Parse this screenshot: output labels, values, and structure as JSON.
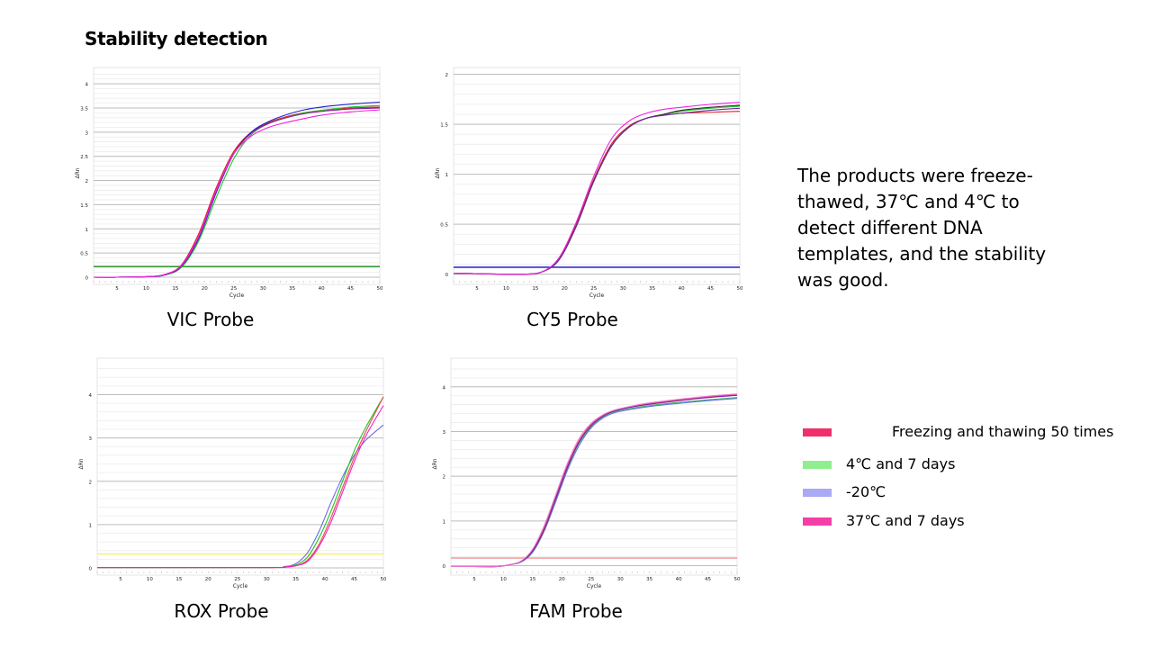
{
  "heading": "Stability detection",
  "description": "The products were freeze-thawed, 37℃ and 4℃ to detect different DNA templates, and the stability was good.",
  "legend": [
    {
      "label": "Freezing and thawing 50 times",
      "color": "#f0306a"
    },
    {
      "label": "4℃ and 7 days",
      "color": "#90ee90"
    },
    {
      "label": "-20℃",
      "color": "#a9a9f5"
    },
    {
      "label": "37℃ and 7 days",
      "color": "#f43fa8"
    }
  ],
  "chart_data": [
    {
      "type": "line",
      "title": "VIC Probe",
      "xlabel": "Cycle",
      "ylabel": "ΔRn",
      "xlim": [
        1,
        50
      ],
      "ylim": [
        0,
        4.3
      ],
      "xticks": [
        5,
        10,
        15,
        20,
        25,
        30,
        35,
        40,
        45,
        50
      ],
      "yticks": [
        0,
        0.5,
        1,
        1.5,
        2,
        2.5,
        3,
        3.5,
        4
      ],
      "ytick_labels": [
        "0",
        "0.5",
        "1",
        "1.5",
        "2",
        "2.5",
        "3",
        "3.5",
        "4"
      ],
      "grid": true,
      "threshold": 0.22,
      "threshold_color": "#3c9a3c",
      "x": [
        1,
        5,
        10,
        13,
        16,
        19,
        22,
        25,
        28,
        31,
        34,
        37,
        40,
        45,
        50
      ],
      "series": [
        {
          "color": "#e02020",
          "values": [
            0,
            0,
            0.01,
            0.05,
            0.25,
            0.9,
            1.85,
            2.6,
            3.0,
            3.2,
            3.32,
            3.4,
            3.45,
            3.5,
            3.52
          ]
        },
        {
          "color": "#22c422",
          "values": [
            0,
            0,
            0.01,
            0.04,
            0.2,
            0.75,
            1.65,
            2.45,
            2.95,
            3.18,
            3.3,
            3.4,
            3.45,
            3.52,
            3.55
          ]
        },
        {
          "color": "#2222cc",
          "values": [
            0,
            0,
            0.01,
            0.04,
            0.22,
            0.8,
            1.75,
            2.55,
            3.0,
            3.22,
            3.36,
            3.46,
            3.52,
            3.58,
            3.62
          ]
        },
        {
          "color": "#8a1aa0",
          "values": [
            0,
            0,
            0.01,
            0.045,
            0.23,
            0.83,
            1.78,
            2.56,
            2.98,
            3.18,
            3.3,
            3.38,
            3.43,
            3.48,
            3.5
          ]
        },
        {
          "color": "#f020e0",
          "values": [
            0,
            0,
            0.01,
            0.05,
            0.24,
            0.85,
            1.8,
            2.55,
            2.92,
            3.1,
            3.2,
            3.28,
            3.35,
            3.42,
            3.46
          ]
        }
      ]
    },
    {
      "type": "line",
      "title": "CY5 Probe",
      "xlabel": "Cycle",
      "ylabel": "ΔRn",
      "xlim": [
        1,
        50
      ],
      "ylim": [
        -0.03,
        2.05
      ],
      "xticks": [
        5,
        10,
        15,
        20,
        25,
        30,
        35,
        40,
        45,
        50
      ],
      "yticks": [
        0,
        0.5,
        1,
        1.5,
        2
      ],
      "ytick_labels": [
        "0",
        "0.5",
        "1",
        "1.5",
        "2"
      ],
      "grid": true,
      "threshold": 0.07,
      "threshold_color": "#3030d0",
      "x": [
        1,
        5,
        10,
        13,
        16,
        19,
        22,
        25,
        28,
        31,
        34,
        37,
        40,
        45,
        50
      ],
      "series": [
        {
          "color": "#e02020",
          "values": [
            0.01,
            0.005,
            0,
            0,
            0.02,
            0.15,
            0.5,
            0.95,
            1.3,
            1.48,
            1.56,
            1.59,
            1.61,
            1.62,
            1.63
          ]
        },
        {
          "color": "#22c422",
          "values": [
            0.01,
            0.005,
            0,
            0,
            0.02,
            0.14,
            0.48,
            0.93,
            1.28,
            1.47,
            1.56,
            1.6,
            1.63,
            1.66,
            1.68
          ]
        },
        {
          "color": "#303030",
          "values": [
            0.01,
            0.005,
            0,
            0,
            0.02,
            0.14,
            0.48,
            0.93,
            1.28,
            1.47,
            1.56,
            1.6,
            1.64,
            1.67,
            1.69
          ]
        },
        {
          "color": "#6a2aa0",
          "values": [
            0.01,
            0.005,
            0,
            0,
            0.02,
            0.14,
            0.48,
            0.93,
            1.28,
            1.47,
            1.56,
            1.59,
            1.61,
            1.64,
            1.66
          ]
        },
        {
          "color": "#f020e0",
          "values": [
            0.01,
            0.005,
            0,
            0,
            0.02,
            0.16,
            0.52,
            0.98,
            1.35,
            1.53,
            1.61,
            1.65,
            1.67,
            1.7,
            1.72
          ]
        }
      ]
    },
    {
      "type": "line",
      "title": "ROX Probe",
      "xlabel": "Cycle",
      "ylabel": "ΔRn",
      "xlim": [
        1,
        50
      ],
      "ylim": [
        0,
        4.8
      ],
      "xticks": [
        5,
        10,
        15,
        20,
        25,
        30,
        35,
        40,
        45,
        50
      ],
      "yticks": [
        0,
        1,
        2,
        3,
        4
      ],
      "ytick_labels": [
        "0",
        "1",
        "2",
        "3",
        "4"
      ],
      "grid": true,
      "threshold": 0.32,
      "threshold_color": "#f5f080",
      "x": [
        1,
        30,
        33,
        35,
        37,
        39,
        41,
        43,
        45,
        47,
        50
      ],
      "series": [
        {
          "color": "#6a6ae8",
          "values": [
            0.01,
            0.01,
            0.03,
            0.1,
            0.35,
            0.85,
            1.5,
            2.1,
            2.6,
            2.95,
            3.3
          ]
        },
        {
          "color": "#22c422",
          "values": [
            0.01,
            0.01,
            0.02,
            0.07,
            0.25,
            0.7,
            1.3,
            2.0,
            2.7,
            3.25,
            3.95
          ]
        },
        {
          "color": "#e05050",
          "values": [
            0.01,
            0.01,
            0.02,
            0.05,
            0.18,
            0.55,
            1.15,
            1.85,
            2.55,
            3.15,
            3.95
          ]
        },
        {
          "color": "#f020c0",
          "values": [
            0.01,
            0.01,
            0.02,
            0.05,
            0.15,
            0.5,
            1.05,
            1.75,
            2.45,
            3.05,
            3.75
          ]
        }
      ]
    },
    {
      "type": "line",
      "title": "FAM Probe",
      "xlabel": "Cycle",
      "ylabel": "ΔRn",
      "xlim": [
        1,
        50
      ],
      "ylim": [
        -0.05,
        4.6
      ],
      "xticks": [
        5,
        10,
        15,
        20,
        25,
        30,
        35,
        40,
        45,
        50
      ],
      "yticks": [
        0,
        1,
        2,
        3,
        4
      ],
      "ytick_labels": [
        "0",
        "1",
        "2",
        "3",
        "4"
      ],
      "grid": true,
      "threshold": 0.17,
      "threshold_color": "#f5a0a0",
      "x": [
        1,
        5,
        9,
        11,
        13,
        15,
        17,
        19,
        21,
        23,
        25,
        27,
        29,
        32,
        35,
        40,
        45,
        50
      ],
      "series": [
        {
          "color": "#e05050",
          "values": [
            -0.02,
            -0.02,
            -0.02,
            0.02,
            0.1,
            0.35,
            0.85,
            1.55,
            2.25,
            2.8,
            3.15,
            3.35,
            3.47,
            3.56,
            3.62,
            3.7,
            3.77,
            3.83
          ]
        },
        {
          "color": "#6a6ae8",
          "values": [
            -0.02,
            -0.02,
            -0.02,
            0.02,
            0.08,
            0.3,
            0.78,
            1.45,
            2.15,
            2.7,
            3.08,
            3.3,
            3.42,
            3.5,
            3.56,
            3.63,
            3.69,
            3.74
          ]
        },
        {
          "color": "#40b070",
          "values": [
            -0.02,
            -0.02,
            -0.02,
            0.02,
            0.09,
            0.32,
            0.8,
            1.5,
            2.2,
            2.75,
            3.1,
            3.32,
            3.44,
            3.52,
            3.58,
            3.65,
            3.71,
            3.76
          ]
        },
        {
          "color": "#8a1aa0",
          "values": [
            -0.02,
            -0.02,
            -0.02,
            0.02,
            0.09,
            0.33,
            0.82,
            1.52,
            2.22,
            2.78,
            3.13,
            3.34,
            3.46,
            3.55,
            3.61,
            3.69,
            3.76,
            3.81
          ]
        },
        {
          "color": "#f070d0",
          "values": [
            -0.02,
            -0.02,
            -0.02,
            0.02,
            0.1,
            0.37,
            0.9,
            1.6,
            2.3,
            2.85,
            3.18,
            3.37,
            3.48,
            3.57,
            3.64,
            3.72,
            3.79,
            3.84
          ]
        }
      ]
    }
  ]
}
